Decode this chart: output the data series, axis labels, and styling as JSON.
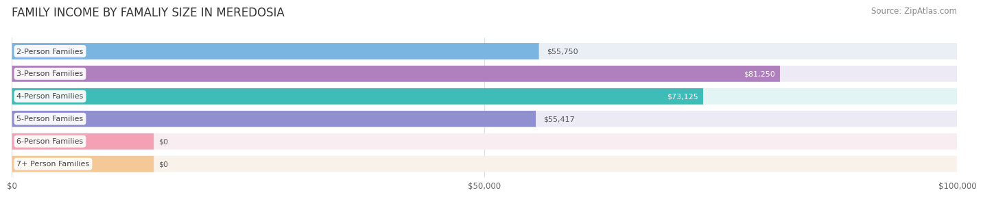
{
  "title": "FAMILY INCOME BY FAMALIY SIZE IN MEREDOSIA",
  "source": "Source: ZipAtlas.com",
  "categories": [
    "2-Person Families",
    "3-Person Families",
    "4-Person Families",
    "5-Person Families",
    "6-Person Families",
    "7+ Person Families"
  ],
  "values": [
    55750,
    81250,
    73125,
    55417,
    0,
    0
  ],
  "bar_colors": [
    "#7ab4e0",
    "#b07fbe",
    "#3dbcb8",
    "#9090d0",
    "#f4a0b5",
    "#f5c898"
  ],
  "bar_bg_colors": [
    "#eaeef5",
    "#edeaf5",
    "#e2f4f4",
    "#eceaf5",
    "#f8eef2",
    "#f8f2ea"
  ],
  "value_labels": [
    "$55,750",
    "$81,250",
    "$73,125",
    "$55,417",
    "$0",
    "$0"
  ],
  "value_inside": [
    false,
    true,
    true,
    false,
    false,
    false
  ],
  "xlim": [
    0,
    100000
  ],
  "xticks": [
    0,
    50000,
    100000
  ],
  "xtick_labels": [
    "$0",
    "$50,000",
    "$100,000"
  ],
  "background_color": "#ffffff",
  "title_fontsize": 12,
  "source_fontsize": 8.5
}
